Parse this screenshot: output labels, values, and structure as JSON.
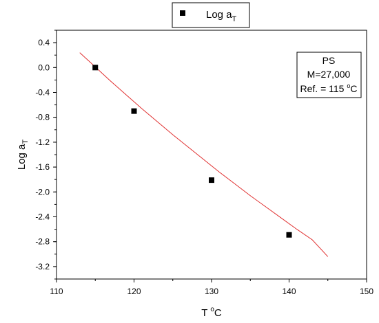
{
  "chart_data": {
    "type": "scatter",
    "title": "",
    "xlabel": {
      "main": "T ",
      "sup": "o",
      "tail": "C"
    },
    "ylabel": {
      "main": "Log a",
      "sub": "T"
    },
    "xlim": [
      110,
      150
    ],
    "ylim": [
      -3.4,
      0.6
    ],
    "xticks": [
      110,
      120,
      130,
      140,
      150
    ],
    "yticks": [
      0.4,
      0.0,
      -0.4,
      -0.8,
      -1.2,
      -1.6,
      -2.0,
      -2.4,
      -2.8,
      -3.2
    ],
    "ytick_labels": [
      "0.4",
      "0.0",
      "-0.4",
      "-0.8",
      "-1.2",
      "-1.6",
      "-2.0",
      "-2.4",
      "-2.8",
      "-3.2"
    ],
    "series": [
      {
        "name": {
          "main": "Log a",
          "sub": "T"
        },
        "marker": "square",
        "color": "#000000",
        "x": [
          115,
          120,
          130,
          140
        ],
        "y": [
          0.0,
          -0.7,
          -1.81,
          -2.69
        ]
      }
    ],
    "fit_curve": {
      "color": "#e03030",
      "x": [
        113,
        115,
        117,
        119,
        121,
        123,
        125,
        127,
        129,
        131,
        133,
        135,
        137,
        139,
        141,
        143,
        145
      ],
      "y": [
        0.24,
        0.01,
        -0.22,
        -0.44,
        -0.66,
        -0.87,
        -1.08,
        -1.28,
        -1.48,
        -1.68,
        -1.87,
        -2.06,
        -2.24,
        -2.42,
        -2.6,
        -2.77,
        -3.04
      ]
    },
    "legend": {
      "position": "top-center"
    },
    "annotation": {
      "line1": "PS",
      "line2": "M=27,000",
      "line3_main": "Ref. = 115 ",
      "line3_sup": "o",
      "line3_tail": "C"
    },
    "grid": false
  }
}
